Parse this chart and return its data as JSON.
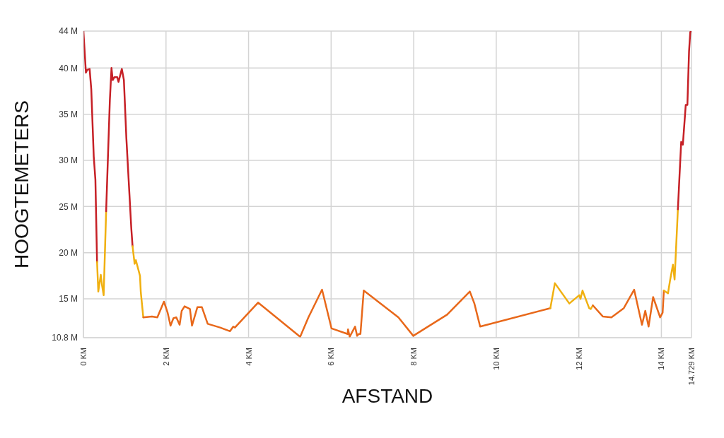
{
  "chart_data": {
    "type": "line",
    "xlabel": "AFSTAND",
    "ylabel": "HOOGTEMETERS",
    "xlim": [
      0,
      14.729
    ],
    "ylim": [
      10.8,
      44
    ],
    "xticks": [
      {
        "value": 0,
        "label": "0 KM"
      },
      {
        "value": 2,
        "label": "2 KM"
      },
      {
        "value": 4,
        "label": "4 KM"
      },
      {
        "value": 6,
        "label": "6 KM"
      },
      {
        "value": 8,
        "label": "8 KM"
      },
      {
        "value": 10,
        "label": "10 KM"
      },
      {
        "value": 12,
        "label": "12 KM"
      },
      {
        "value": 14,
        "label": "14 KM"
      },
      {
        "value": 14.729,
        "label": "14.729 KM"
      }
    ],
    "yticks": [
      {
        "value": 10.8,
        "label": "10.8 M"
      },
      {
        "value": 15,
        "label": "15 M"
      },
      {
        "value": 20,
        "label": "20 M"
      },
      {
        "value": 25,
        "label": "25 M"
      },
      {
        "value": 30,
        "label": "30 M"
      },
      {
        "value": 35,
        "label": "35 M"
      },
      {
        "value": 40,
        "label": "40 M"
      },
      {
        "value": 44,
        "label": "44 M"
      }
    ],
    "grid": true,
    "line_style": "solid",
    "series": [
      {
        "color": "#c62026",
        "x": [
          0,
          0.06,
          0.09,
          0.15,
          0.19,
          0.25,
          0.29,
          0.33
        ],
        "values": [
          44,
          39.5,
          39.8,
          39.9,
          37.7,
          30.4,
          27.9,
          19.0
        ]
      },
      {
        "color": "#f0b010",
        "x": [
          0.33,
          0.36,
          0.42,
          0.45,
          0.49,
          0.55
        ],
        "values": [
          19.0,
          15.8,
          17.6,
          16.5,
          15.4,
          24.5
        ]
      },
      {
        "color": "#c62026",
        "x": [
          0.55,
          0.64,
          0.68,
          0.71,
          0.75,
          0.82,
          0.85,
          0.93,
          0.98,
          1.04,
          1.16,
          1.19
        ],
        "values": [
          24.5,
          36.5,
          40.0,
          38.7,
          39.0,
          39.0,
          38.5,
          39.9,
          38.7,
          32.4,
          22.6,
          20.7
        ]
      },
      {
        "color": "#f0b010",
        "x": [
          1.19,
          1.24,
          1.27,
          1.37,
          1.39,
          1.45
        ],
        "values": [
          20.7,
          18.8,
          19.2,
          17.5,
          15.7,
          13.0
        ]
      },
      {
        "color": "#e8681a",
        "x": [
          1.45,
          1.66,
          1.79,
          1.95,
          2.04,
          2.11,
          2.18,
          2.25,
          2.33,
          2.38,
          2.45,
          2.58,
          2.63,
          2.76,
          2.87,
          3.01,
          3.31,
          3.55,
          3.63,
          3.67,
          4.23,
          5.25,
          5.45,
          5.78,
          6.01,
          6.4,
          6.41,
          6.45,
          6.58,
          6.63,
          6.67,
          6.71,
          6.79,
          7.63,
          7.99,
          8.81,
          9.36,
          9.47,
          9.61,
          11.31
        ],
        "values": [
          13.0,
          13.1,
          13.0,
          14.7,
          13.5,
          12.1,
          12.9,
          13.0,
          12.2,
          13.7,
          14.2,
          13.9,
          12.1,
          14.1,
          14.1,
          12.3,
          11.9,
          11.5,
          12.0,
          11.9,
          14.6,
          10.9,
          13.0,
          16.0,
          11.8,
          11.2,
          11.7,
          10.9,
          12.0,
          11.0,
          11.2,
          11.2,
          15.9,
          13.0,
          11.0,
          13.3,
          15.8,
          14.5,
          12.0,
          14.0
        ]
      },
      {
        "color": "#f0b010",
        "x": [
          11.31,
          11.42,
          11.77,
          12.01,
          12.04,
          12.09,
          12.25,
          12.29,
          12.34
        ],
        "values": [
          14.0,
          16.7,
          14.5,
          15.4,
          15.0,
          15.9,
          14.0,
          13.9,
          14.3
        ]
      },
      {
        "color": "#e8681a",
        "x": [
          12.34,
          12.58,
          12.79,
          13.09,
          13.34,
          13.53,
          13.61,
          13.69,
          13.8,
          13.97,
          14.03,
          14.06
        ],
        "values": [
          14.3,
          13.1,
          13.0,
          14.0,
          16.0,
          12.2,
          13.7,
          12.0,
          15.2,
          13.0,
          13.5,
          15.9
        ]
      },
      {
        "color": "#f0b010",
        "x": [
          14.06,
          14.16,
          14.21,
          14.28,
          14.32,
          14.4
        ],
        "values": [
          15.9,
          15.6,
          17.0,
          18.7,
          17.1,
          24.7
        ]
      },
      {
        "color": "#c62026",
        "x": [
          14.4,
          14.44,
          14.48,
          14.52,
          14.59,
          14.63,
          14.67,
          14.7,
          14.729
        ],
        "values": [
          24.7,
          28.4,
          32.0,
          31.7,
          36.0,
          36.0,
          41.8,
          43.9,
          44
        ]
      }
    ]
  }
}
